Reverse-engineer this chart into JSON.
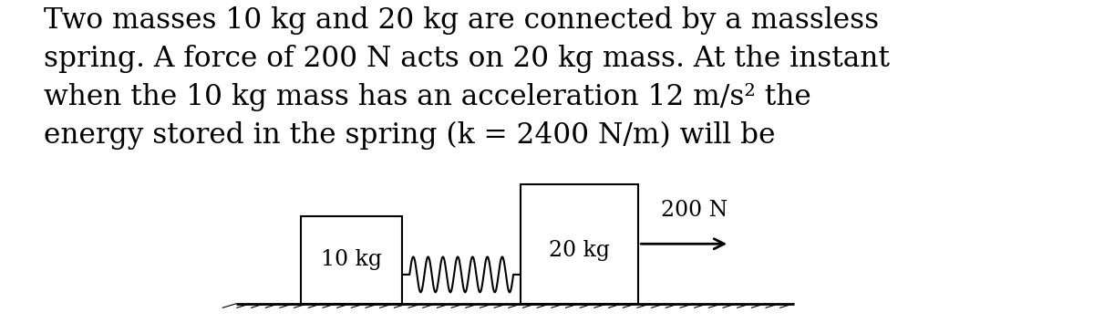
{
  "title_text": "Two masses 10 kg and 20 kg are connected by a massless\nspring. A force of 200 N acts on 20 kg mass. At the instant\nwhen the 10 kg mass has an acceleration 12 m/s² the\nenergy stored in the spring (k = 2400 N/m) will be",
  "title_fontsize": 22.5,
  "title_font": "DejaVu Serif",
  "bg_color": "#ffffff",
  "line_color": "#000000",
  "block_facecolor": "#ffffff",
  "block_edgecolor": "#000000",
  "diagram_fontsize": 17,
  "block1_label": "10 kg",
  "block2_label": "20 kg",
  "force_label": "200 N"
}
